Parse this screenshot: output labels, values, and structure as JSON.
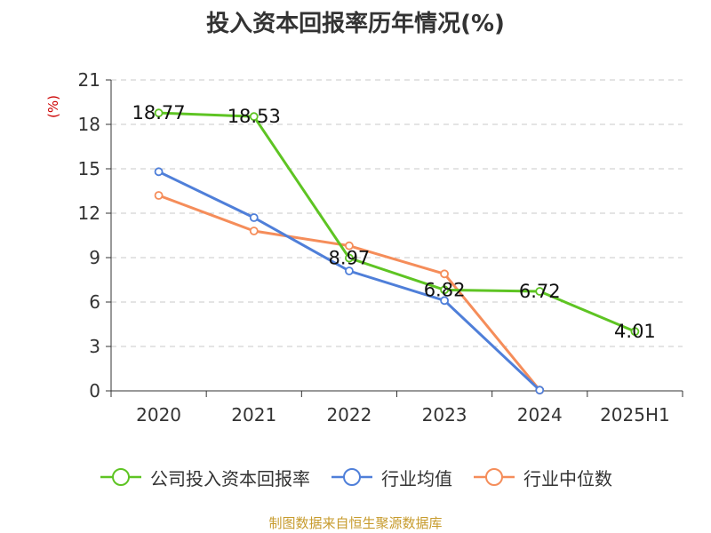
{
  "title": "投入资本回报率历年情况(%)",
  "source": "制图数据来自恒生聚源数据库",
  "colors": {
    "company": "#5ec423",
    "industry_avg": "#4f7fd9",
    "industry_median": "#f58d5a",
    "grid": "#c8c8c8",
    "axis": "#333333"
  },
  "chart_data": {
    "type": "line",
    "title": "投入资本回报率历年情况(%)",
    "ylabel": "(%)",
    "xlabel": "",
    "categories": [
      "2020",
      "2021",
      "2022",
      "2023",
      "2024",
      "2025H1"
    ],
    "ylim": [
      0,
      21
    ],
    "yticks": [
      0,
      3,
      6,
      9,
      12,
      15,
      18,
      21
    ],
    "grid": true,
    "legend_position": "bottom",
    "series": [
      {
        "name": "公司投入资本回报率",
        "color": "#5ec423",
        "values": [
          18.77,
          18.53,
          8.97,
          6.82,
          6.72,
          4.01
        ],
        "labels": [
          "18.77",
          "18.53",
          "8.97",
          "6.82",
          "6.72",
          "4.01"
        ]
      },
      {
        "name": "行业均值",
        "color": "#4f7fd9",
        "values": [
          14.8,
          11.7,
          8.1,
          6.1,
          0.05,
          null
        ]
      },
      {
        "name": "行业中位数",
        "color": "#f58d5a",
        "values": [
          13.2,
          10.8,
          9.8,
          7.9,
          0.05,
          null
        ]
      }
    ]
  }
}
